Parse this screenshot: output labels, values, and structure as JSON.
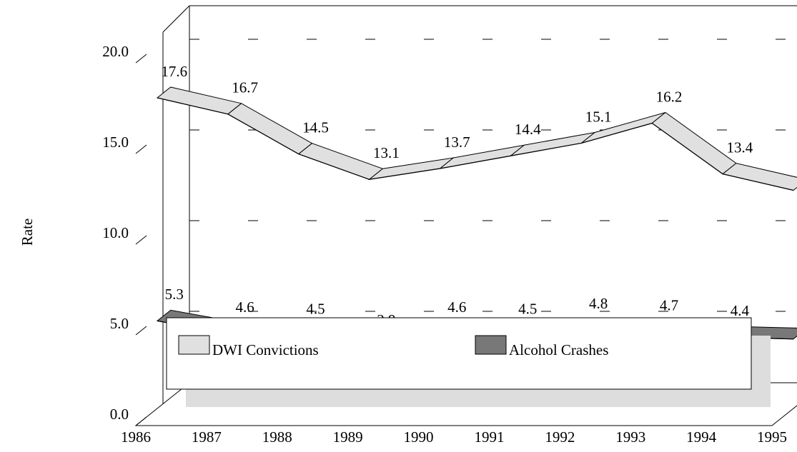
{
  "chart_data": {
    "type": "line",
    "y_label": "Rate",
    "categories": [
      "1986",
      "1987",
      "1988",
      "1989",
      "1990",
      "1991",
      "1992",
      "1993",
      "1994",
      "1995"
    ],
    "series": [
      {
        "name": "DWI Convictions",
        "color": "#e0e0e0",
        "values": [
          17.6,
          16.7,
          14.5,
          13.1,
          13.7,
          14.4,
          15.1,
          16.2,
          13.4,
          12.5
        ]
      },
      {
        "name": "Alcohol Crashes",
        "color": "#787878",
        "values": [
          5.3,
          4.6,
          4.5,
          3.9,
          4.6,
          4.5,
          4.8,
          4.7,
          4.4,
          4.3
        ]
      }
    ],
    "ylim": [
      0,
      20
    ],
    "yticks": [
      {
        "value": 0,
        "label": "0.0"
      },
      {
        "value": 5,
        "label": "5.0"
      },
      {
        "value": 10,
        "label": "10.0"
      },
      {
        "value": 15,
        "label": "15.0"
      },
      {
        "value": 20,
        "label": "20.0"
      }
    ],
    "grid": true
  }
}
